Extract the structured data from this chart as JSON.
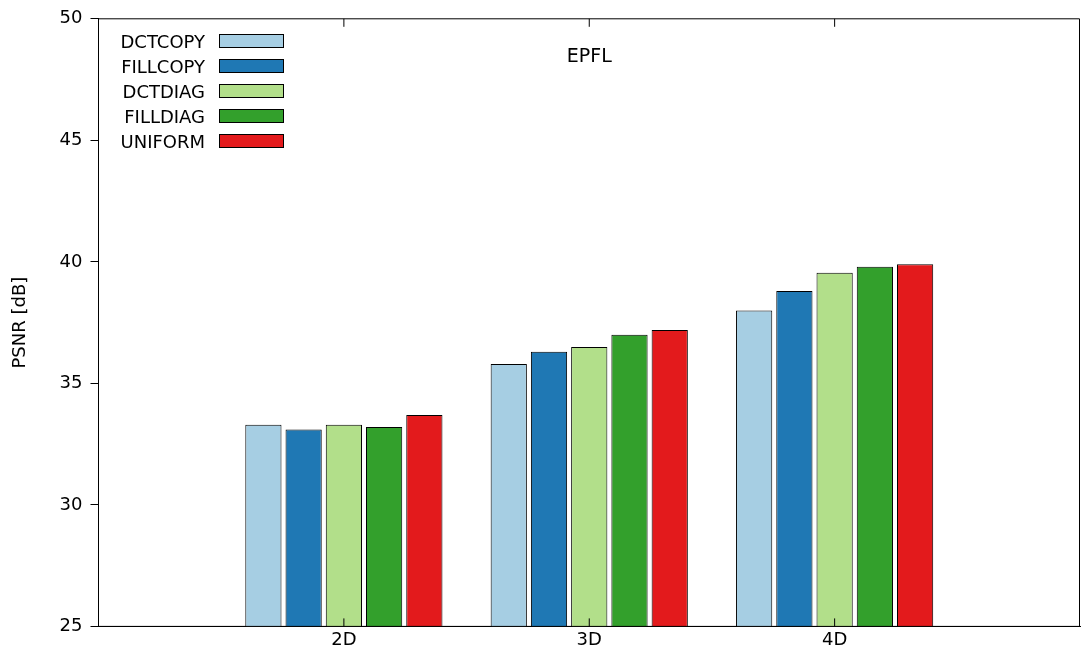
{
  "chart_data": {
    "type": "bar",
    "title": "EPFL",
    "ylabel": "PSNR [dB]",
    "categories": [
      "2D",
      "3D",
      "4D"
    ],
    "series": [
      {
        "name": "DCTCOPY",
        "color": "#a6cee3",
        "values": [
          33.3,
          35.8,
          38.0
        ]
      },
      {
        "name": "FILLCOPY",
        "color": "#1f78b4",
        "values": [
          33.1,
          36.3,
          38.8
        ]
      },
      {
        "name": "DCTDIAG",
        "color": "#b2df8a",
        "values": [
          33.3,
          36.5,
          39.55
        ]
      },
      {
        "name": "FILLDIAG",
        "color": "#33a02c",
        "values": [
          33.2,
          37.0,
          39.8
        ]
      },
      {
        "name": "UNIFORM",
        "color": "#e31a1c",
        "values": [
          33.7,
          37.2,
          39.9
        ]
      }
    ],
    "ylim": [
      25,
      50
    ],
    "yticks": [
      25,
      30,
      35,
      40,
      45,
      50
    ],
    "grid": false,
    "legend": "top left"
  }
}
